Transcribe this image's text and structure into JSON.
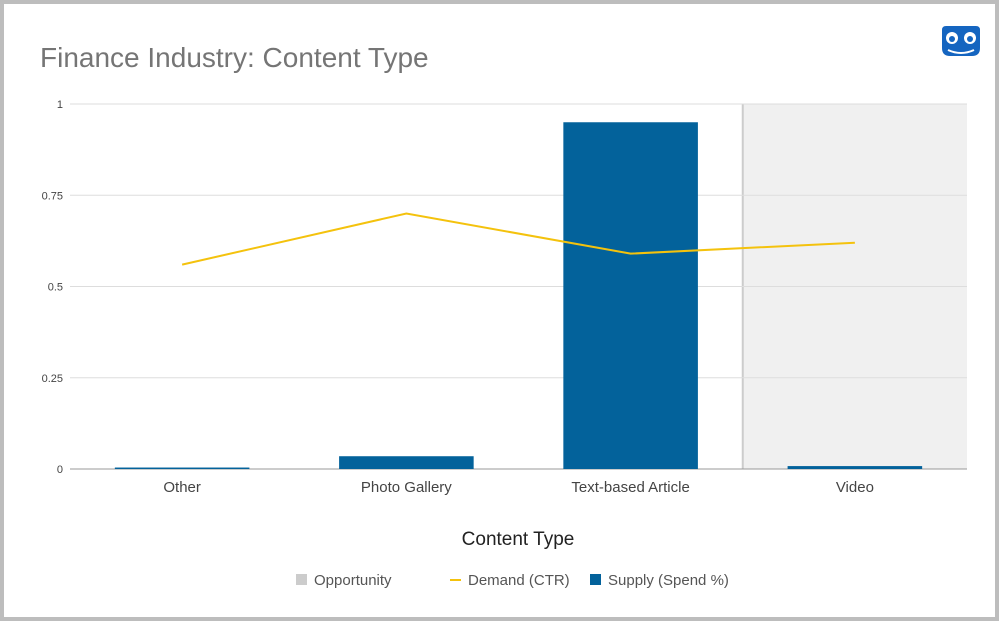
{
  "chart_data": {
    "type": "bar",
    "title": "Finance Industry: Content Type",
    "xlabel": "Content Type",
    "ylabel": "",
    "ylim": [
      0,
      1
    ],
    "yticks": [
      "0",
      "0.25",
      "0.5",
      "0.75",
      "1"
    ],
    "ytick_values": [
      0,
      0.25,
      0.5,
      0.75,
      1
    ],
    "categories": [
      "Other",
      "Photo Gallery",
      "Text-based Article",
      "Video"
    ],
    "grid": true,
    "legend_position": "bottom",
    "series": [
      {
        "name": "Opportunity",
        "kind": "shaded-area",
        "color": "#cccccc",
        "values": [
          0,
          0,
          0,
          1
        ]
      },
      {
        "name": "Demand (CTR)",
        "kind": "line",
        "color": "#f4c20d",
        "values": [
          0.56,
          0.7,
          0.59,
          0.62
        ]
      },
      {
        "name": "Supply (Spend %)",
        "kind": "bar",
        "color": "#03629b",
        "values": [
          0.004,
          0.035,
          0.95,
          0.008
        ]
      }
    ]
  },
  "logo": {
    "name": "logo-icon",
    "color": "#1565c0"
  }
}
